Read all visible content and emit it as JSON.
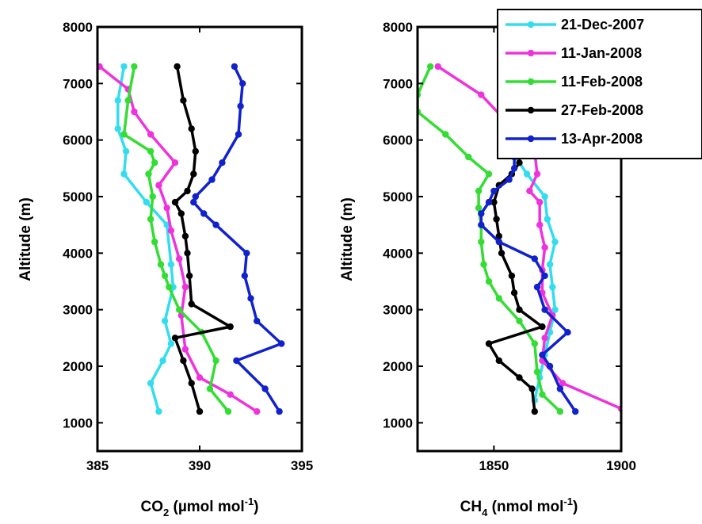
{
  "chart_data": [
    {
      "type": "line",
      "ylabel": "Altitude (m)",
      "xlabel": {
        "main": "CO",
        "sub": "2",
        "rest": " (µmol mol",
        "sup": "-1",
        "end": ")"
      },
      "xlim": [
        385,
        395
      ],
      "ylim": [
        500,
        8000
      ],
      "xticks": [
        "385",
        "390",
        "395"
      ],
      "yticks": [
        "1000",
        "2000",
        "3000",
        "4000",
        "5000",
        "6000",
        "7000",
        "8000"
      ],
      "grid": false,
      "series": [
        {
          "name": "21-Dec-2007",
          "color": "#33ddee",
          "x": [
            388.0,
            387.6,
            388.2,
            388.6,
            388.3,
            388.7,
            388.6,
            388.4,
            387.4,
            386.3,
            386.4,
            386.0,
            386.0,
            386.3
          ],
          "y": [
            1200,
            1700,
            2100,
            2400,
            2800,
            3400,
            3800,
            4500,
            4900,
            5400,
            5800,
            6200,
            6700,
            7300
          ]
        },
        {
          "name": "11-Jan-2008",
          "color": "#ee33dd",
          "x": [
            392.8,
            391.5,
            390.0,
            389.3,
            389.1,
            389.3,
            389.0,
            388.6,
            388.4,
            388.0,
            388.8,
            387.6,
            386.8,
            386.5,
            385.1
          ],
          "y": [
            1200,
            1500,
            1800,
            2300,
            2900,
            3400,
            3900,
            4400,
            4800,
            5200,
            5600,
            6100,
            6500,
            6900,
            7300
          ]
        },
        {
          "name": "11-Feb-2008",
          "color": "#33dd33",
          "x": [
            391.4,
            390.5,
            390.8,
            390.1,
            389.0,
            388.5,
            388.3,
            388.1,
            387.8,
            387.6,
            387.7,
            387.5,
            387.8,
            387.6,
            386.3,
            386.5,
            386.8
          ],
          "y": [
            1200,
            1600,
            2100,
            2600,
            3000,
            3400,
            3600,
            3800,
            4200,
            4600,
            5000,
            5400,
            5600,
            5800,
            6100,
            6700,
            7300
          ]
        },
        {
          "name": "27-Feb-2008",
          "color": "#000000",
          "x": [
            390.0,
            389.6,
            389.2,
            388.8,
            391.5,
            389.6,
            389.5,
            389.4,
            389.3,
            389.1,
            388.8,
            389.4,
            389.7,
            389.8,
            389.6,
            389.2,
            388.9
          ],
          "y": [
            1200,
            1700,
            2100,
            2500,
            2700,
            3100,
            3600,
            4000,
            4300,
            4700,
            4900,
            5100,
            5400,
            5800,
            6200,
            6700,
            7300
          ]
        },
        {
          "name": "13-Apr-2008",
          "color": "#1122cc",
          "x": [
            393.9,
            393.2,
            391.8,
            394.0,
            392.8,
            392.5,
            392.2,
            392.3,
            390.8,
            390.2,
            389.7,
            389.8,
            390.6,
            391.1,
            391.9,
            392.0,
            392.1,
            391.7
          ],
          "y": [
            1200,
            1600,
            2100,
            2400,
            2800,
            3200,
            3600,
            4000,
            4500,
            4700,
            4900,
            5000,
            5300,
            5600,
            6100,
            6600,
            7000,
            7300
          ]
        }
      ]
    },
    {
      "type": "line",
      "ylabel": "Altitude (m)",
      "xlabel": {
        "main": "CH",
        "sub": "4",
        "rest": " (nmol mol",
        "sup": "-1",
        "end": ")"
      },
      "xlim": [
        1820,
        1900
      ],
      "ylim": [
        500,
        8000
      ],
      "xticks": [
        "1850",
        "1900"
      ],
      "yticks": [
        "1000",
        "2000",
        "3000",
        "4000",
        "5000",
        "6000",
        "7000",
        "8000"
      ],
      "grid": false,
      "series": [
        {
          "name": "21-Dec-2007",
          "color": "#33ddee",
          "x": [
            1866,
            1868,
            1870,
            1872,
            1874,
            1873,
            1872,
            1874,
            1871,
            1870,
            1863,
            1857,
            1860,
            1862
          ],
          "y": [
            1400,
            1800,
            2200,
            2600,
            3000,
            3400,
            3800,
            4200,
            4600,
            5000,
            5400,
            5800,
            6300,
            6900
          ]
        },
        {
          "name": "11-Jan-2008",
          "color": "#ee33dd",
          "x": [
            1900,
            1877,
            1869,
            1870,
            1873,
            1869,
            1869,
            1870,
            1868,
            1868,
            1864,
            1867,
            1866,
            1845,
            1828
          ],
          "y": [
            1250,
            1700,
            2100,
            2500,
            2900,
            3300,
            3700,
            4100,
            4500,
            4900,
            5100,
            5400,
            5800,
            6800,
            7300
          ]
        },
        {
          "name": "11-Feb-2008",
          "color": "#33dd33",
          "x": [
            1876,
            1869,
            1867,
            1866,
            1860,
            1852,
            1848,
            1846,
            1845,
            1845,
            1844,
            1844,
            1848,
            1840,
            1831,
            1820,
            1820,
            1825
          ],
          "y": [
            1200,
            1500,
            1900,
            2400,
            2800,
            3200,
            3500,
            3800,
            4200,
            4500,
            4800,
            5100,
            5400,
            5700,
            6100,
            6500,
            6800,
            7300
          ]
        },
        {
          "name": "27-Feb-2008",
          "color": "#000000",
          "x": [
            1866,
            1865,
            1860,
            1852,
            1848,
            1869,
            1860,
            1858,
            1857,
            1853,
            1852,
            1851,
            1850,
            1852,
            1857,
            1860
          ],
          "y": [
            1200,
            1600,
            1800,
            2100,
            2400,
            2700,
            3000,
            3300,
            3600,
            4000,
            4300,
            4600,
            4900,
            5200,
            5400,
            5600
          ]
        },
        {
          "name": "13-Apr-2008",
          "color": "#1122cc",
          "x": [
            1882,
            1876,
            1872,
            1869,
            1879,
            1870,
            1867,
            1870,
            1866,
            1852,
            1845,
            1845,
            1848,
            1850,
            1856,
            1858,
            1858
          ],
          "y": [
            1200,
            1600,
            2000,
            2200,
            2600,
            3000,
            3400,
            3600,
            3900,
            4200,
            4500,
            4700,
            4900,
            5100,
            5300,
            5500,
            5700
          ]
        }
      ]
    }
  ],
  "legend": {
    "placement": "top-right of right panel",
    "entries": [
      {
        "label": "21-Dec-2007",
        "color": "#33ddee"
      },
      {
        "label": "11-Jan-2008",
        "color": "#ee33dd"
      },
      {
        "label": "11-Feb-2008",
        "color": "#33dd33"
      },
      {
        "label": "27-Feb-2008",
        "color": "#000000"
      },
      {
        "label": "13-Apr-2008",
        "color": "#1122cc"
      }
    ]
  }
}
